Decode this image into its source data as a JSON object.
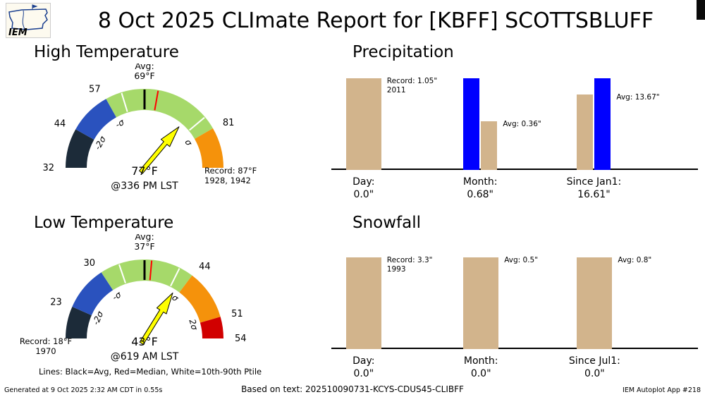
{
  "header": {
    "logo_text": "IEM",
    "title": "8 Oct 2025 CLImate Report for [KBFF] SCOTTSBLUFF"
  },
  "legend": "Lines: Black=Avg, Red=Median, White=10th-90th Ptile",
  "footer": {
    "generated": "Generated at 9 Oct 2025 2:32 AM CDT in 0.55s",
    "based_on": "Based on text: 202510090731-KCYS-CDUS45-CLIBFF",
    "app": "IEM Autoplot App #218"
  },
  "chart_data": [
    {
      "type": "gauge",
      "title": "High Temperature",
      "units": "F",
      "value": 77,
      "value_label": "77°F",
      "time_label": "@336 PM LST",
      "avg_label_lines": [
        "Avg:",
        "69°F"
      ],
      "record_label_lines": [
        "Record: 87°F",
        "1928, 1942"
      ],
      "record_side": "right",
      "scale": {
        "min": 32,
        "avg": 69,
        "max": 87
      },
      "segments": [
        {
          "from": 32,
          "to": 44,
          "color": "#1c2b39",
          "name": "below-minus2sigma"
        },
        {
          "from": 44,
          "to": 57,
          "color": "#2a52be",
          "name": "minus2sigma-to-minus1sigma"
        },
        {
          "from": 57,
          "to": 81,
          "color": "#a6d96a",
          "name": "within-1sigma"
        },
        {
          "from": 81,
          "to": 87,
          "color": "#f5920b",
          "name": "plus1sigma-to-record"
        }
      ],
      "ticks": [
        {
          "value": 32,
          "label": "32"
        },
        {
          "value": 44,
          "label": "44"
        },
        {
          "value": 57,
          "label": "57"
        },
        {
          "value": 81,
          "label": "81"
        }
      ],
      "sigma_labels": [
        {
          "value": 44,
          "label": "-2σ"
        },
        {
          "value": 57,
          "label": "-σ"
        },
        {
          "value": 81,
          "label": "σ"
        }
      ],
      "lines": [
        {
          "value": 69,
          "color": "#000000",
          "name": "avg",
          "width": 3
        },
        {
          "value": 71,
          "color": "#ff0000",
          "name": "median",
          "width": 2
        },
        {
          "value": 62,
          "color": "#ffffff",
          "name": "ptile10",
          "width": 2
        },
        {
          "value": 79,
          "color": "#ffffff",
          "name": "ptile90",
          "width": 2
        }
      ]
    },
    {
      "type": "bar",
      "title": "Precipitation",
      "units": "inch",
      "bar_colors": {
        "climatology": "#d2b48c",
        "observed": "#0000ff"
      },
      "groups": [
        {
          "category": "Day",
          "observed": 0.0,
          "label_lines": [
            "Day:",
            "0.0\""
          ],
          "bars": [
            {
              "name": "record",
              "value": 1.05,
              "color": "#d2b48c"
            }
          ],
          "note_lines": [
            "Record: 1.05\"",
            "2011"
          ],
          "note_bar": 0
        },
        {
          "category": "Month",
          "observed": 0.68,
          "label_lines": [
            "Month:",
            "0.68\""
          ],
          "bars": [
            {
              "name": "observed",
              "value": 0.68,
              "color": "#0000ff"
            },
            {
              "name": "average",
              "value": 0.36,
              "color": "#d2b48c"
            }
          ],
          "note_lines": [
            "Avg: 0.36\""
          ],
          "note_bar": 1
        },
        {
          "category": "Since Jan1",
          "observed": 16.61,
          "label_lines": [
            "Since Jan1:",
            "16.61\""
          ],
          "bars": [
            {
              "name": "average",
              "value": 13.67,
              "color": "#d2b48c"
            },
            {
              "name": "observed",
              "value": 16.61,
              "color": "#0000ff"
            }
          ],
          "note_lines": [
            "Avg: 13.67\""
          ],
          "note_bar": 0
        }
      ]
    },
    {
      "type": "gauge",
      "title": "Low Temperature",
      "units": "F",
      "value": 43,
      "value_label": "43°F",
      "time_label": "@619 AM LST",
      "avg_label_lines": [
        "Avg:",
        "37°F"
      ],
      "record_label_lines": [
        "Record: 18°F",
        "1970"
      ],
      "record_side": "left",
      "scale": {
        "min": 18,
        "avg": 37,
        "max": 54
      },
      "segments": [
        {
          "from": 18,
          "to": 23,
          "color": "#1c2b39",
          "name": "below-minus2sigma"
        },
        {
          "from": 23,
          "to": 30,
          "color": "#2a52be",
          "name": "minus2sigma-to-minus1sigma"
        },
        {
          "from": 30,
          "to": 44,
          "color": "#a6d96a",
          "name": "within-1sigma"
        },
        {
          "from": 44,
          "to": 51,
          "color": "#f5920b",
          "name": "plus1sigma-to-plus2sigma"
        },
        {
          "from": 51,
          "to": 54,
          "color": "#d10000",
          "name": "plus2sigma-to-record"
        }
      ],
      "ticks": [
        {
          "value": 23,
          "label": "23"
        },
        {
          "value": 30,
          "label": "30"
        },
        {
          "value": 44,
          "label": "44"
        },
        {
          "value": 51,
          "label": "51"
        },
        {
          "value": 54,
          "label": "54"
        }
      ],
      "sigma_labels": [
        {
          "value": 23,
          "label": "-2σ"
        },
        {
          "value": 30,
          "label": "-σ"
        },
        {
          "value": 44,
          "label": "σ"
        },
        {
          "value": 51,
          "label": "2σ"
        }
      ],
      "lines": [
        {
          "value": 37,
          "color": "#000000",
          "name": "avg",
          "width": 3
        },
        {
          "value": 38,
          "color": "#ff0000",
          "name": "median",
          "width": 2
        },
        {
          "value": 33,
          "color": "#ffffff",
          "name": "ptile10",
          "width": 2
        },
        {
          "value": 42,
          "color": "#ffffff",
          "name": "ptile90",
          "width": 2
        }
      ]
    },
    {
      "type": "bar",
      "title": "Snowfall",
      "units": "inch",
      "bar_colors": {
        "climatology": "#d2b48c",
        "observed": "#0000ff"
      },
      "groups": [
        {
          "category": "Day",
          "observed": 0.0,
          "label_lines": [
            "Day:",
            "0.0\""
          ],
          "bars": [
            {
              "name": "record",
              "value": 3.3,
              "color": "#d2b48c"
            }
          ],
          "note_lines": [
            "Record: 3.3\"",
            "1993"
          ],
          "note_bar": 0
        },
        {
          "category": "Month",
          "observed": 0.0,
          "label_lines": [
            "Month:",
            "0.0\""
          ],
          "bars": [
            {
              "name": "average",
              "value": 0.5,
              "color": "#d2b48c"
            }
          ],
          "note_lines": [
            "Avg: 0.5\""
          ],
          "note_bar": 0
        },
        {
          "category": "Since Jul1",
          "observed": 0.0,
          "label_lines": [
            "Since Jul1:",
            "0.0\""
          ],
          "bars": [
            {
              "name": "average",
              "value": 0.8,
              "color": "#d2b48c"
            }
          ],
          "note_lines": [
            "Avg: 0.8\""
          ],
          "note_bar": 0
        }
      ]
    }
  ]
}
